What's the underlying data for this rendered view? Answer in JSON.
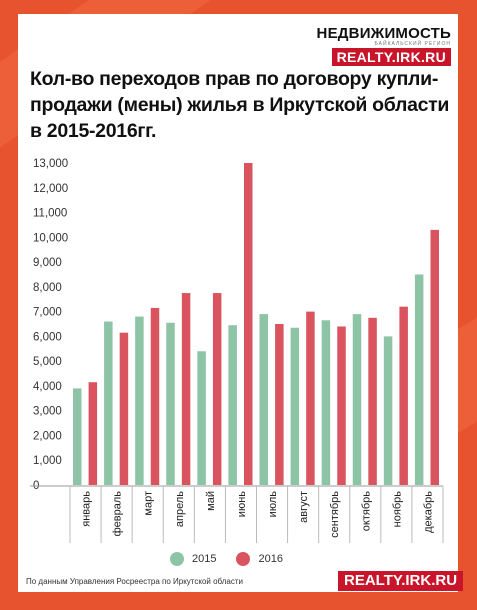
{
  "brand": {
    "name": "НЕДВИЖИМОСТЬ",
    "tagline": "БАЙКАЛЬСКИЙ РЕГИОН",
    "site": "REALTY.IRK.RU"
  },
  "title": "Кол-во переходов прав по договору купли-продажи (мены) жилья в Иркутской области в 2015-2016гг.",
  "footnote": "По данным Управления Росреестра по Иркутской области",
  "footer_site": "REALTY.IRK.RU",
  "colors": {
    "series_2015": "#8ec4a6",
    "series_2016": "#da5460",
    "brand_red": "#c8152a",
    "background": "#e8532f"
  },
  "chart_data": {
    "type": "bar",
    "title": "Кол-во переходов прав по договору купли-продажи (мены) жилья в Иркутской области в 2015-2016гг.",
    "xlabel": "",
    "ylabel": "",
    "ylim": [
      0,
      13000
    ],
    "y_ticks": [
      "0",
      "1,000",
      "2,000",
      "3,000",
      "4,000",
      "5,000",
      "6,000",
      "7,000",
      "8,000",
      "9,000",
      "10,000",
      "11,000",
      "12,000",
      "13,000"
    ],
    "categories": [
      "январь",
      "февраль",
      "март",
      "апрель",
      "май",
      "июнь",
      "июль",
      "август",
      "сентябрь",
      "октябрь",
      "ноябрь",
      "декабрь"
    ],
    "series": [
      {
        "name": "2015",
        "values": [
          3900,
          6600,
          6800,
          6550,
          5400,
          6450,
          6900,
          6350,
          6650,
          6900,
          6000,
          8500
        ]
      },
      {
        "name": "2016",
        "values": [
          4150,
          6150,
          7150,
          7750,
          7750,
          13000,
          6500,
          7000,
          6400,
          6750,
          7200,
          10300
        ]
      }
    ],
    "grid": "none",
    "legend": "bottom-center"
  }
}
